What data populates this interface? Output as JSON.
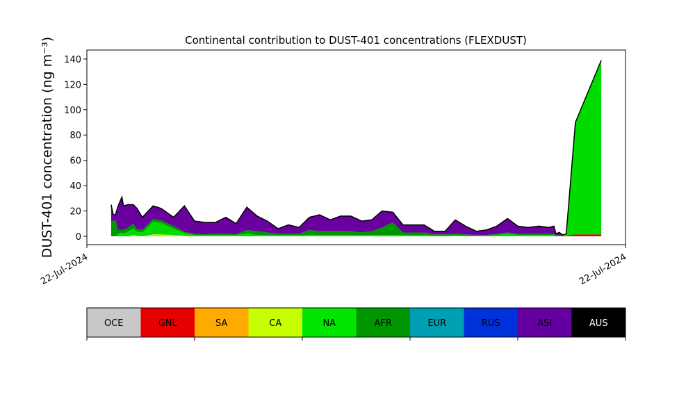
{
  "chart_data": {
    "type": "area",
    "stacked": true,
    "title": "Continental contribution to DUST-401 concentrations (FLEXDUST)",
    "y_label": "DUST-401 concentration (ng m⁻³)",
    "outline_color": "#000000",
    "x": [
      4.5,
      4.9,
      5.3,
      5.8,
      6.5,
      6.8,
      7.7,
      8.6,
      9.3,
      10.3,
      12.3,
      13.8,
      16.1,
      18.1,
      20,
      21.9,
      23.9,
      25.8,
      27.7,
      29.7,
      31.6,
      33.5,
      35.5,
      37.4,
      39.4,
      41.3,
      43.2,
      45.2,
      47.1,
      49,
      51,
      52.9,
      54.8,
      56.8,
      58.7,
      60.6,
      62.6,
      64.5,
      66.5,
      68.4,
      70.3,
      72.3,
      74.2,
      76.1,
      78.1,
      80,
      81.9,
      83.9,
      85.8,
      86.7,
      87.1,
      87.7,
      88.4,
      89,
      90.7,
      95.5
    ],
    "series": [
      {
        "name": "GNL",
        "color": "#e00000",
        "values": [
          0,
          0,
          0,
          0,
          0,
          0,
          0,
          0,
          0,
          0,
          0,
          0,
          0,
          0,
          0,
          0,
          0,
          0,
          0,
          0,
          0,
          0,
          0,
          0,
          0,
          0,
          0,
          0,
          0,
          0,
          0,
          0,
          0,
          0,
          0,
          0,
          0,
          0,
          0,
          0,
          0,
          0,
          0,
          0,
          0,
          0,
          0,
          0,
          0,
          0,
          0,
          0,
          0,
          0.5,
          1.5,
          1.5
        ]
      },
      {
        "name": "CA",
        "color": "#c8f000",
        "values": [
          0,
          0,
          0,
          0,
          0,
          0,
          0,
          1,
          0.5,
          0,
          1.5,
          1.5,
          1,
          0.5,
          0,
          0,
          0,
          0,
          0,
          0,
          0,
          0,
          0,
          0,
          0,
          0,
          0,
          0,
          0,
          0,
          0,
          0,
          0,
          0,
          0,
          0,
          0,
          0,
          0,
          0,
          0,
          0,
          0,
          0,
          0,
          0,
          0,
          0,
          0,
          0,
          0,
          0,
          0,
          0,
          0,
          0
        ]
      },
      {
        "name": "NA",
        "color": "#00dc00",
        "values": [
          0,
          0,
          0,
          2,
          3,
          2,
          4,
          5,
          3,
          3,
          10,
          9,
          5,
          2,
          1,
          1,
          1,
          1,
          1,
          2,
          1,
          1,
          1,
          1,
          1,
          1,
          1,
          1,
          1,
          1,
          1,
          1,
          1,
          1,
          1,
          1,
          1,
          0.5,
          0.5,
          1,
          0.5,
          0.5,
          0.5,
          1,
          2,
          1,
          1,
          1,
          1,
          1,
          0,
          0,
          0,
          1,
          88,
          137.5
        ]
      },
      {
        "name": "AFR",
        "color": "#009600",
        "values": [
          12,
          12,
          13,
          3,
          2,
          3,
          3,
          4,
          2,
          2,
          2,
          2,
          2,
          1,
          1,
          0.5,
          1,
          1,
          0.5,
          3,
          3,
          2,
          1,
          1,
          1,
          4,
          3,
          3,
          3,
          3,
          2,
          3,
          6,
          10,
          2,
          2,
          2,
          1,
          1,
          1,
          1,
          0.5,
          0.5,
          1,
          1,
          1,
          1,
          1,
          1,
          1,
          1,
          1,
          0.5,
          0.5,
          0.5,
          0
        ]
      },
      {
        "name": "ASI",
        "color": "#6a00a0",
        "values": [
          13,
          5,
          4,
          19,
          26,
          19,
          18,
          15,
          16.5,
          10,
          10.5,
          9.5,
          7,
          20.5,
          10,
          9.5,
          9,
          13,
          8.5,
          18,
          12,
          9,
          4,
          7,
          5,
          10,
          13,
          9,
          12,
          12,
          9,
          9,
          13,
          8,
          6,
          6,
          6,
          2.5,
          2.5,
          11,
          6.5,
          3,
          4,
          6,
          11,
          6,
          5,
          6,
          5,
          6,
          1,
          2,
          0.5,
          0,
          0,
          0
        ]
      }
    ],
    "xlim": [
      0,
      100
    ],
    "xticks": [
      {
        "value": 0,
        "label": "22-Jul-2024"
      },
      {
        "value": 100,
        "label": "22-Jul-2024"
      }
    ],
    "ylim": [
      -6.6,
      147.1
    ],
    "yticks": [
      0,
      20,
      40,
      60,
      80,
      100,
      120,
      140
    ],
    "colorbar": {
      "labels": [
        "OCE",
        "GNL",
        "SA",
        "CA",
        "NA",
        "AFR",
        "EUR",
        "RUS",
        "ASI",
        "AUS"
      ],
      "colors": [
        "#c8c8c8",
        "#e60000",
        "#ffaa00",
        "#c8ff00",
        "#00e600",
        "#009600",
        "#00a0b4",
        "#0032dc",
        "#6400a0",
        "#000000"
      ],
      "label_colors": [
        "#000000",
        "#000000",
        "#000000",
        "#000000",
        "#000000",
        "#000000",
        "#000000",
        "#000000",
        "#000000",
        "#ffffff"
      ]
    }
  }
}
